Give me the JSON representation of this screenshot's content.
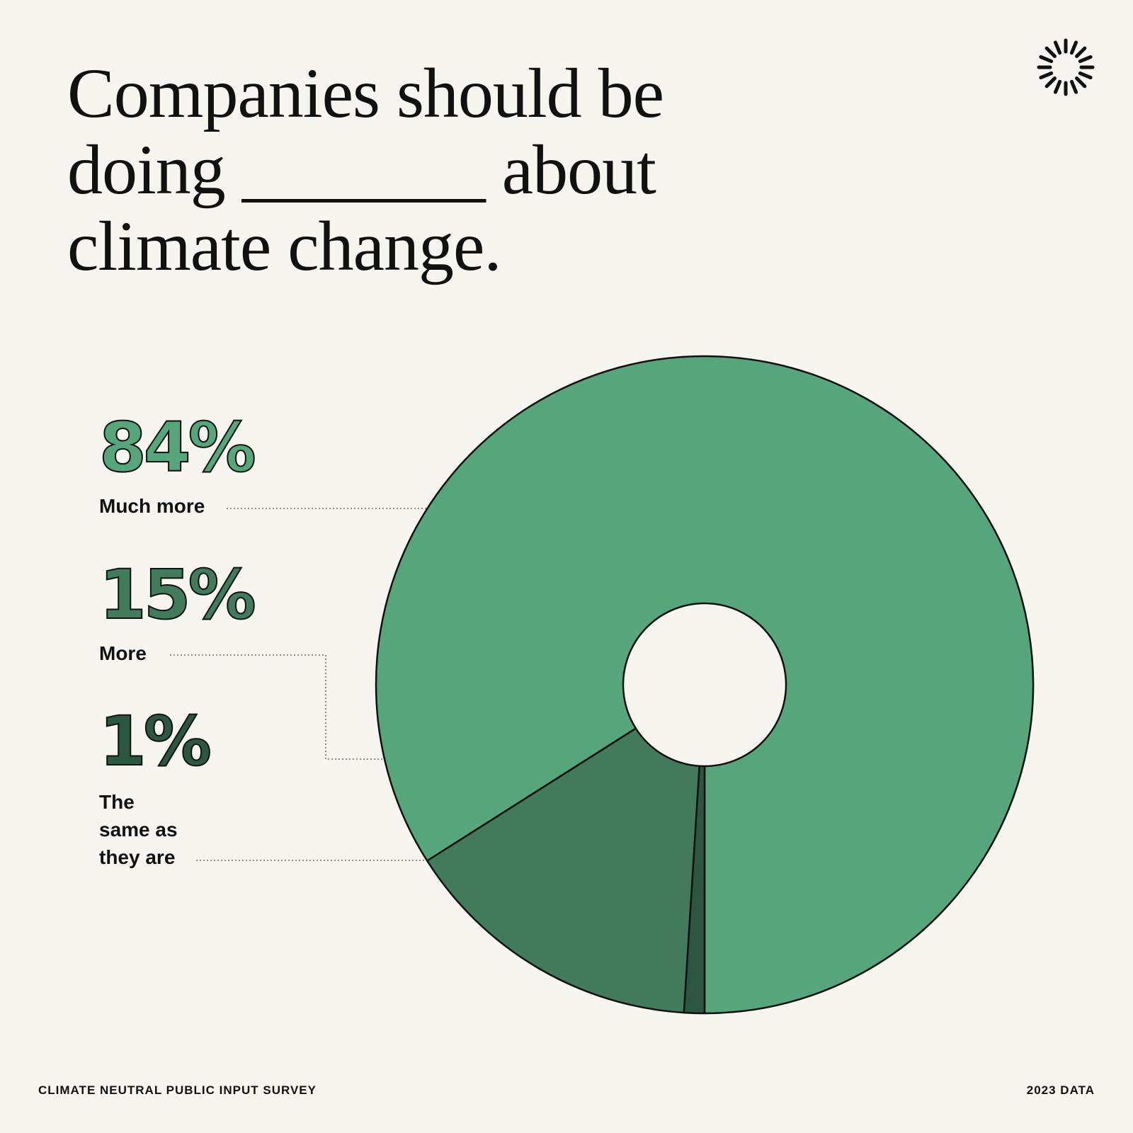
{
  "chart_data": {
    "type": "pie",
    "title": "Companies should be doing _______ about climate change.",
    "categories": [
      "Much more",
      "More",
      "The same as they are"
    ],
    "values": [
      84,
      15,
      1
    ],
    "value_labels": [
      "84%",
      "15%",
      "1%"
    ],
    "colors": [
      "#57a57b",
      "#427b5c",
      "#2c5640"
    ],
    "donut": true,
    "footer_left": "CLIMATE NEUTRAL PUBLIC INPUT SURVEY",
    "footer_right": "2023 DATA"
  }
}
